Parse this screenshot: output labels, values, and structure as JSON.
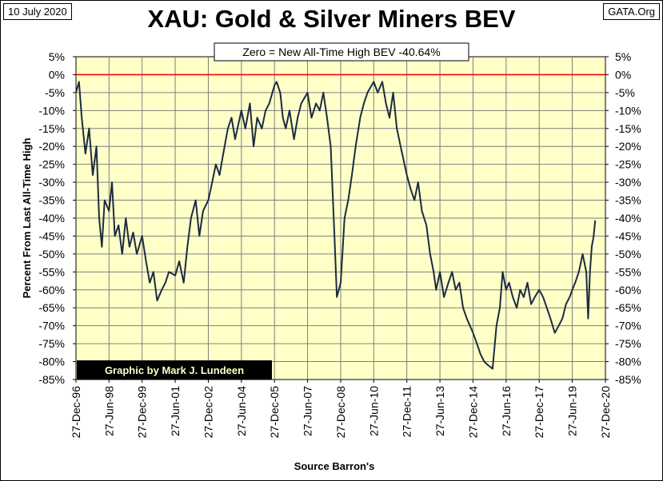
{
  "header": {
    "date_label": "10 July 2020",
    "source_site": "GATA.Org",
    "title": "XAU: Gold & Silver Miners BEV"
  },
  "annotations": {
    "zero_note": "Zero = New All-Time High BEV -40.64%",
    "credit": "Graphic by Mark J. Lundeen"
  },
  "colors": {
    "plot_bg": "#ffffc8",
    "series_line": "#1c2b3f",
    "zero_line": "#ff0000",
    "grid": "#7f7f7f",
    "credit_bg": "#000000",
    "credit_text": "#ffffc8"
  },
  "chart_data": {
    "type": "line",
    "ylabel": "Percent From Last All-Time High",
    "xlabel": "Source Barron's",
    "ylim": [
      -85,
      5
    ],
    "yticks": [
      5,
      0,
      -5,
      -10,
      -15,
      -20,
      -25,
      -30,
      -35,
      -40,
      -45,
      -50,
      -55,
      -60,
      -65,
      -70,
      -75,
      -80,
      -85
    ],
    "ytick_labels": [
      "5%",
      "0%",
      "-5%",
      "-10%",
      "-15%",
      "-20%",
      "-25%",
      "-30%",
      "-35%",
      "-40%",
      "-45%",
      "-50%",
      "-55%",
      "-60%",
      "-65%",
      "-70%",
      "-75%",
      "-80%",
      "-85%"
    ],
    "xlim": [
      "1996-12-27",
      "2020-12-27"
    ],
    "xticks": [
      "1996-12-27",
      "1998-06-27",
      "1999-12-27",
      "2001-06-27",
      "2002-12-27",
      "2004-06-27",
      "2005-12-27",
      "2007-06-27",
      "2008-12-27",
      "2010-06-27",
      "2011-12-27",
      "2013-06-27",
      "2014-12-27",
      "2016-06-27",
      "2017-12-27",
      "2019-06-27",
      "2020-12-27"
    ],
    "xtick_labels": [
      "27-Dec-96",
      "27-Jun-98",
      "27-Dec-99",
      "27-Jun-01",
      "27-Dec-02",
      "27-Jun-04",
      "27-Dec-05",
      "27-Jun-07",
      "27-Dec-08",
      "27-Jun-10",
      "27-Dec-11",
      "27-Jun-13",
      "27-Dec-14",
      "27-Jun-16",
      "27-Dec-17",
      "27-Jun-19",
      "27-Dec-20"
    ],
    "grid": true,
    "reference_line": 0,
    "series": [
      {
        "x": [
          "1996-12-27",
          "1997-02-15",
          "1997-04-01",
          "1997-06-01",
          "1997-08-01",
          "1997-10-01",
          "1997-12-01",
          "1998-01-15",
          "1998-03-01",
          "1998-04-15",
          "1998-06-27",
          "1998-08-15",
          "1998-10-01",
          "1998-12-01",
          "1999-02-01",
          "1999-04-01",
          "1999-06-01",
          "1999-08-01",
          "1999-10-01",
          "1999-12-27",
          "2000-03-01",
          "2000-05-01",
          "2000-07-01",
          "2000-09-01",
          "2000-11-15",
          "2001-01-15",
          "2001-03-15",
          "2001-06-27",
          "2001-09-01",
          "2001-11-15",
          "2002-01-15",
          "2002-03-15",
          "2002-06-01",
          "2002-08-01",
          "2002-10-01",
          "2002-12-27",
          "2003-03-01",
          "2003-05-01",
          "2003-07-01",
          "2003-09-01",
          "2003-11-15",
          "2004-01-15",
          "2004-03-15",
          "2004-06-27",
          "2004-09-01",
          "2004-11-15",
          "2005-01-15",
          "2005-03-15",
          "2005-06-01",
          "2005-08-01",
          "2005-10-01",
          "2005-12-27",
          "2006-02-01",
          "2006-04-01",
          "2006-05-15",
          "2006-07-01",
          "2006-09-01",
          "2006-11-15",
          "2007-01-15",
          "2007-03-15",
          "2007-06-27",
          "2007-09-01",
          "2007-11-15",
          "2008-01-15",
          "2008-03-15",
          "2008-05-15",
          "2008-07-15",
          "2008-09-15",
          "2008-10-25",
          "2008-12-27",
          "2009-03-01",
          "2009-05-01",
          "2009-07-01",
          "2009-09-01",
          "2009-11-15",
          "2010-01-15",
          "2010-03-15",
          "2010-06-27",
          "2010-09-01",
          "2010-11-15",
          "2011-01-15",
          "2011-03-15",
          "2011-05-15",
          "2011-07-15",
          "2011-09-15",
          "2011-12-27",
          "2012-03-01",
          "2012-05-01",
          "2012-07-01",
          "2012-09-01",
          "2012-11-15",
          "2013-01-15",
          "2013-03-15",
          "2013-04-25",
          "2013-06-27",
          "2013-09-01",
          "2013-11-15",
          "2014-01-15",
          "2014-03-15",
          "2014-05-15",
          "2014-07-15",
          "2014-09-15",
          "2014-12-27",
          "2015-03-01",
          "2015-05-01",
          "2015-07-01",
          "2015-09-01",
          "2015-11-15",
          "2016-01-19",
          "2016-03-15",
          "2016-05-01",
          "2016-06-27",
          "2016-08-15",
          "2016-10-15",
          "2016-12-20",
          "2017-02-15",
          "2017-04-15",
          "2017-06-15",
          "2017-08-15",
          "2017-10-15",
          "2017-12-27",
          "2018-03-01",
          "2018-05-01",
          "2018-07-01",
          "2018-09-11",
          "2018-11-15",
          "2019-01-15",
          "2019-03-15",
          "2019-05-15",
          "2019-06-27",
          "2019-08-15",
          "2019-10-15",
          "2019-12-15",
          "2020-02-15",
          "2020-03-16",
          "2020-04-15",
          "2020-05-15",
          "2020-06-15",
          "2020-07-10"
        ],
        "values": [
          -5,
          -2,
          -12,
          -22,
          -15,
          -28,
          -20,
          -40,
          -48,
          -35,
          -38,
          -30,
          -45,
          -42,
          -50,
          -40,
          -48,
          -44,
          -50,
          -45,
          -52,
          -58,
          -55,
          -63,
          -60,
          -58,
          -55,
          -56,
          -52,
          -58,
          -48,
          -40,
          -35,
          -45,
          -38,
          -35,
          -30,
          -25,
          -28,
          -22,
          -15,
          -12,
          -18,
          -10,
          -15,
          -8,
          -20,
          -12,
          -15,
          -10,
          -8,
          -3,
          -2,
          -5,
          -12,
          -15,
          -10,
          -18,
          -12,
          -8,
          -5,
          -12,
          -8,
          -10,
          -5,
          -12,
          -20,
          -45,
          -62,
          -58,
          -40,
          -35,
          -28,
          -20,
          -12,
          -8,
          -5,
          -2,
          -5,
          -2,
          -8,
          -12,
          -5,
          -15,
          -20,
          -28,
          -32,
          -35,
          -30,
          -38,
          -42,
          -50,
          -55,
          -60,
          -55,
          -62,
          -58,
          -55,
          -60,
          -58,
          -65,
          -68,
          -72,
          -75,
          -78,
          -80,
          -81,
          -82,
          -70,
          -65,
          -55,
          -60,
          -58,
          -62,
          -65,
          -60,
          -62,
          -58,
          -64,
          -62,
          -60,
          -62,
          -65,
          -68,
          -72,
          -70,
          -68,
          -64,
          -62,
          -60,
          -58,
          -55,
          -50,
          -55,
          -68,
          -55,
          -48,
          -45,
          -40.64
        ]
      }
    ]
  }
}
